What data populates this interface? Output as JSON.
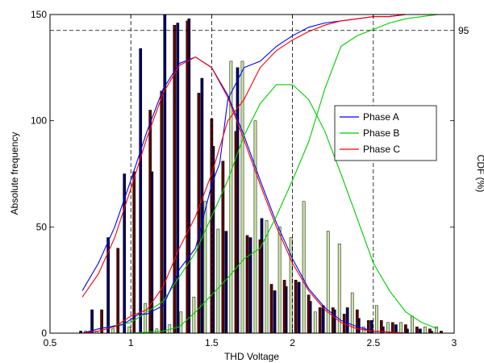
{
  "chart_data": {
    "type": "bar",
    "xlabel": "THD Voltage",
    "ylabel_left": "Absolute frequency",
    "ylabel_right": "CDF (%)",
    "xlim": [
      0.5,
      3
    ],
    "ylim": [
      0,
      150
    ],
    "xticks": [
      "0.5",
      "1",
      "1.5",
      "2",
      "2.5",
      "3"
    ],
    "yticks": [
      "0",
      "50",
      "100",
      "150"
    ],
    "reference_line": {
      "y": 142.5,
      "label": "95"
    },
    "vlines": [
      1,
      1.5,
      2,
      2.5
    ],
    "legend": {
      "placement": "right",
      "entries": [
        "Phase A",
        "Phase B",
        "Phase C"
      ]
    },
    "colors": {
      "Phase A": "#0000ff",
      "Phase B": "#00cc00",
      "Phase C": "#ff0000",
      "bar_A": "#000060",
      "bar_B": "#c8e6a0",
      "bar_C": "#5a0000"
    },
    "histograms": [
      {
        "name": "Phase A",
        "x": [
          0.69,
          0.76,
          0.86,
          0.96,
          1.06,
          1.13,
          1.21,
          1.29,
          1.36,
          1.44,
          1.51,
          1.59,
          1.66,
          1.74,
          1.81,
          1.89,
          1.96,
          2.04,
          2.11,
          2.19,
          2.26,
          2.34,
          2.41,
          2.49,
          2.56,
          2.64,
          2.71,
          2.79,
          2.86
        ],
        "values": [
          1,
          11,
          45,
          75,
          134,
          76,
          150,
          146,
          148,
          120,
          88,
          48,
          125,
          45,
          54,
          20,
          22,
          24,
          15,
          13,
          11,
          12,
          7,
          6,
          3,
          4,
          2,
          2,
          1
        ]
      },
      {
        "name": "Phase B",
        "x": [
          0.72,
          0.79,
          0.89,
          0.99,
          1.09,
          1.16,
          1.24,
          1.31,
          1.39,
          1.46,
          1.54,
          1.62,
          1.69,
          1.77,
          1.84,
          1.92,
          1.99,
          2.07,
          2.14,
          2.22,
          2.29,
          2.37,
          2.44,
          2.52,
          2.59,
          2.67,
          2.74,
          2.82,
          2.89
        ],
        "values": [
          1,
          1,
          2,
          3,
          14,
          2,
          4,
          10,
          17,
          62,
          49,
          128,
          128,
          100,
          53,
          50,
          45,
          62,
          10,
          48,
          42,
          19,
          3,
          13,
          5,
          5,
          8,
          3,
          3
        ]
      },
      {
        "name": "Phase C",
        "x": [
          0.75,
          0.82,
          0.92,
          1.02,
          1.12,
          1.19,
          1.27,
          1.35,
          1.42,
          1.5,
          1.57,
          1.65,
          1.72,
          1.8,
          1.87,
          1.95,
          2.02,
          2.1,
          2.17,
          2.25,
          2.32,
          2.4,
          2.47,
          2.55,
          2.62,
          2.7,
          2.77,
          2.85,
          2.92
        ],
        "values": [
          1,
          11,
          40,
          76,
          105,
          114,
          145,
          147,
          113,
          101,
          81,
          95,
          46,
          44,
          23,
          25,
          25,
          18,
          12,
          12,
          9,
          11,
          6,
          6,
          5,
          4,
          3,
          2,
          1
        ]
      }
    ],
    "cdf_series": [
      {
        "name": "Phase A",
        "x": [
          0.7,
          0.8,
          0.95,
          1.05,
          1.1,
          1.2,
          1.3,
          1.4,
          1.5,
          1.55,
          1.6,
          1.7,
          1.8,
          1.9,
          2.0,
          2.1,
          2.2,
          2.3,
          2.4,
          2.5,
          2.6,
          2.7,
          2.8,
          2.9
        ],
        "values": [
          0,
          2,
          4,
          9,
          9,
          13,
          30,
          40,
          70,
          80,
          110,
          125,
          128,
          135,
          140,
          144,
          146,
          147,
          148,
          149,
          149,
          150,
          150,
          150
        ]
      },
      {
        "name": "Phase B",
        "x": [
          0.7,
          0.9,
          1.0,
          1.2,
          1.3,
          1.4,
          1.5,
          1.6,
          1.7,
          1.8,
          1.9,
          2.0,
          2.1,
          2.2,
          2.3,
          2.4,
          2.5,
          2.6,
          2.7,
          2.8,
          2.9
        ],
        "values": [
          0,
          0,
          0,
          1,
          3,
          10,
          18,
          26,
          35,
          40,
          55,
          72,
          90,
          115,
          135,
          140,
          143,
          146,
          148,
          149,
          150
        ]
      },
      {
        "name": "Phase C",
        "x": [
          0.7,
          0.8,
          0.9,
          1.0,
          1.1,
          1.2,
          1.3,
          1.4,
          1.5,
          1.6,
          1.7,
          1.8,
          1.9,
          2.0,
          2.1,
          2.2,
          2.3,
          2.4,
          2.5,
          2.6,
          2.7,
          2.8,
          2.9
        ],
        "values": [
          0,
          1,
          3,
          8,
          11,
          22,
          40,
          55,
          75,
          100,
          110,
          125,
          133,
          138,
          142,
          145,
          147,
          148,
          149,
          149,
          150,
          150,
          150
        ]
      }
    ],
    "distribution_series": [
      {
        "name": "Phase A",
        "x": [
          0.7,
          0.8,
          0.9,
          1.0,
          1.1,
          1.2,
          1.3,
          1.4,
          1.5,
          1.6,
          1.7,
          1.8,
          1.9,
          2.0,
          2.1,
          2.2,
          2.3,
          2.4,
          2.5,
          2.6,
          2.7
        ],
        "values": [
          20,
          33,
          50,
          72,
          95,
          115,
          127,
          130,
          125,
          112,
          93,
          72,
          52,
          35,
          21,
          12,
          6,
          3,
          1,
          0.5,
          0
        ]
      },
      {
        "name": "Phase B",
        "x": [
          0.8,
          1.0,
          1.2,
          1.4,
          1.5,
          1.6,
          1.7,
          1.8,
          1.9,
          2.0,
          2.1,
          2.2,
          2.3,
          2.4,
          2.5,
          2.6,
          2.7,
          2.8,
          2.9
        ],
        "values": [
          2,
          5,
          15,
          38,
          55,
          72,
          93,
          108,
          117,
          117,
          110,
          95,
          75,
          54,
          33,
          20,
          10,
          5,
          2
        ]
      },
      {
        "name": "Phase C",
        "x": [
          0.7,
          0.8,
          0.9,
          1.0,
          1.1,
          1.2,
          1.3,
          1.4,
          1.5,
          1.6,
          1.7,
          1.8,
          1.9,
          2.0,
          2.1,
          2.2,
          2.3,
          2.4,
          2.5,
          2.6,
          2.7
        ],
        "values": [
          17,
          28,
          45,
          68,
          92,
          113,
          126,
          130,
          125,
          111,
          91,
          70,
          50,
          33,
          20,
          11,
          5,
          2,
          1,
          0.5,
          0
        ]
      }
    ]
  }
}
